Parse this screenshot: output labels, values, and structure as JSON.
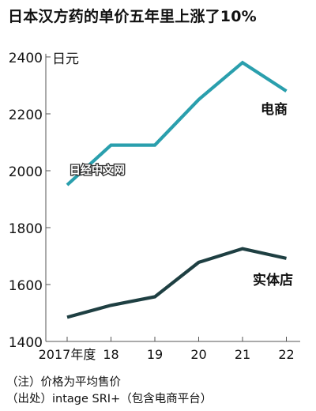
{
  "chart_data": {
    "type": "line",
    "title": "日本汉方药的单价五年里上涨了10%",
    "y_unit": "日元",
    "categories": [
      "2017年度",
      "18",
      "19",
      "20",
      "21",
      "22"
    ],
    "ylim": [
      1400,
      2400
    ],
    "yticks": [
      "2400",
      "2200",
      "2000",
      "1800",
      "1600",
      "1400"
    ],
    "grid": false,
    "series": [
      {
        "name": "电商",
        "values": [
          1950,
          2090,
          2090,
          2250,
          2380,
          2280
        ],
        "color": "#2a9fad"
      },
      {
        "name": "实体店",
        "values": [
          1485,
          1527,
          1557,
          1678,
          1726,
          1692
        ],
        "color": "#1e3f42"
      }
    ],
    "watermark": "日经中文网"
  },
  "notes": {
    "line1": "（注）价格为平均售价",
    "line2": "（出处）intage SRI+（包含电商平台）"
  }
}
